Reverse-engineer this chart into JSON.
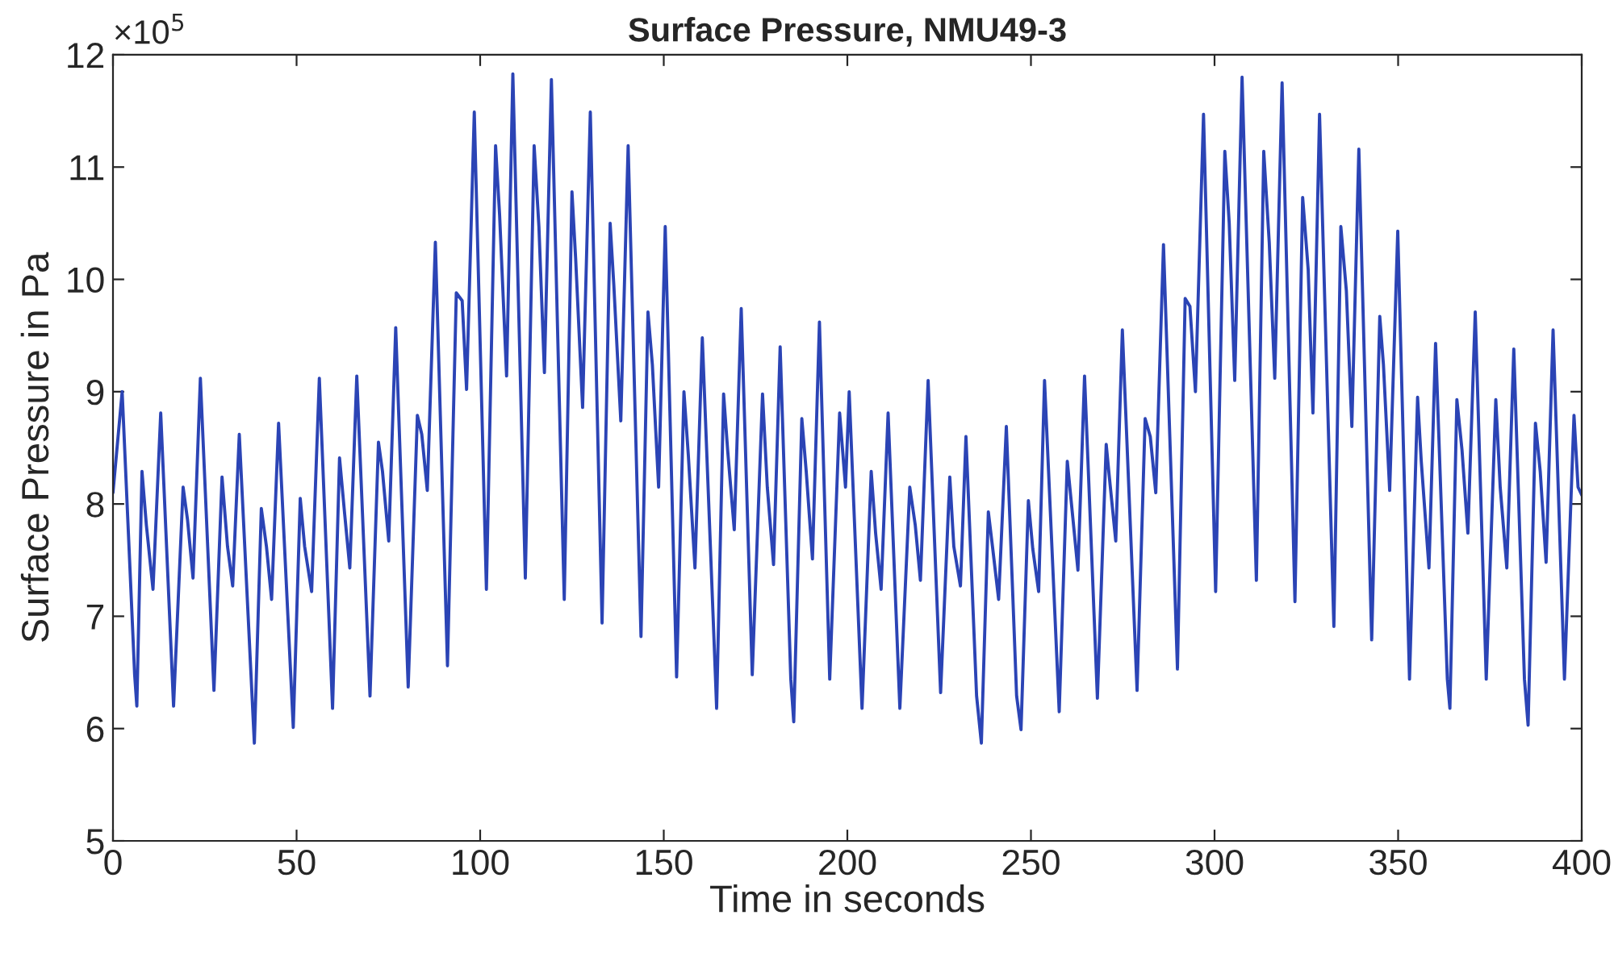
{
  "chart_data": {
    "type": "line",
    "title": "Surface Pressure, NMU49-3",
    "xlabel": "Time in seconds",
    "ylabel": "Surface Pressure in Pa",
    "annotations": [
      "×10$^{5}$"
    ],
    "xlim": [
      0,
      400
    ],
    "xticks": [
      0,
      50,
      100,
      150,
      200,
      250,
      300,
      350,
      400
    ],
    "ylim": [
      5,
      12
    ],
    "yticks": [
      5,
      6,
      7,
      8,
      9,
      10,
      11,
      12
    ],
    "grid": false,
    "legend": false,
    "marker": "none",
    "line_style": "solid",
    "series": [
      {
        "color": "#2b44b5",
        "x": [
          0,
          2.5,
          5.9,
          6.5,
          7.9,
          9.1,
          10.9,
          13.0,
          16.5,
          19.1,
          20.3,
          21.8,
          23.8,
          27.5,
          29.7,
          31.2,
          32.6,
          34.4,
          38.5,
          40.4,
          41.8,
          43.2,
          45.1,
          49.1,
          51.0,
          52.2,
          54.1,
          56.2,
          59.8,
          61.7,
          63.1,
          64.5,
          66.4,
          70.0,
          72.3,
          73.4,
          75.1,
          77.0,
          80.4,
          82.9,
          84.1,
          85.6,
          87.8,
          91.1,
          93.5,
          95.1,
          96.3,
          98.4,
          101.7,
          104.2,
          105.3,
          107.2,
          108.9,
          112.3,
          114.7,
          116.0,
          117.5,
          119.4,
          122.9,
          125.0,
          126.0,
          127.9,
          130.0,
          133.2,
          135.4,
          136.4,
          138.3,
          140.3,
          143.8,
          145.7,
          146.9,
          148.6,
          150.4,
          153.5,
          155.5,
          156.7,
          158.5,
          160.5,
          164.1,
          164.4,
          166.3,
          167.4,
          169.2,
          171.1,
          174.1,
          176.9,
          178.2,
          179.9,
          181.7,
          184.6,
          185.4,
          187.6,
          188.8,
          190.5,
          192.4,
          195.2,
          197.9,
          199.5,
          200.5,
          204.0,
          206.5,
          207.7,
          209.2,
          211.1,
          214.3,
          217.0,
          218.5,
          219.9,
          222.0,
          225.4,
          227.9,
          229.0,
          230.8,
          232.3,
          235.2,
          236.5,
          238.4,
          239.6,
          241.2,
          243.3,
          246.1,
          247.3,
          249.3,
          250.5,
          252.1,
          253.7,
          257.7,
          259.9,
          261.4,
          262.8,
          264.6,
          268.1,
          270.5,
          271.2,
          273.1,
          274.9,
          278.9,
          281.1,
          282.5,
          284.0,
          286.1,
          289.9,
          292.0,
          293.3,
          294.8,
          297.0,
          300.3,
          302.8,
          304.0,
          305.5,
          307.5,
          311.4,
          313.4,
          314.9,
          316.4,
          318.4,
          321.9,
          324.0,
          325.5,
          326.8,
          328.6,
          332.5,
          334.4,
          335.9,
          337.4,
          339.3,
          342.8,
          345.0,
          346.0,
          347.7,
          349.9,
          353.1,
          355.3,
          356.3,
          358.4,
          360.2,
          363.4,
          364.1,
          366.0,
          367.4,
          369.0,
          371.0,
          374.0,
          376.6,
          377.8,
          379.6,
          381.5,
          384.4,
          385.4,
          387.4,
          388.7,
          390.3,
          392.2,
          395.3,
          397.9,
          399.0,
          400
        ],
        "values": [
          8.1,
          9.0,
          6.48,
          6.2,
          8.29,
          7.81,
          7.24,
          8.81,
          6.2,
          8.15,
          7.86,
          7.34,
          9.12,
          6.34,
          8.24,
          7.62,
          7.27,
          8.62,
          5.87,
          7.96,
          7.62,
          7.15,
          8.72,
          6.01,
          8.05,
          7.62,
          7.22,
          9.12,
          6.18,
          8.41,
          7.91,
          7.43,
          9.14,
          6.29,
          8.55,
          8.29,
          7.67,
          9.57,
          6.37,
          8.79,
          8.62,
          8.12,
          10.33,
          6.56,
          9.88,
          9.81,
          9.02,
          11.49,
          7.24,
          11.19,
          10.57,
          9.14,
          11.83,
          7.34,
          11.19,
          10.47,
          9.17,
          11.78,
          7.15,
          10.78,
          10.19,
          8.86,
          11.49,
          6.94,
          10.5,
          9.95,
          8.74,
          11.19,
          6.82,
          9.71,
          9.24,
          8.15,
          10.47,
          6.46,
          9.0,
          8.43,
          7.43,
          9.48,
          6.44,
          6.18,
          8.98,
          8.48,
          7.77,
          9.74,
          6.48,
          8.98,
          8.15,
          7.46,
          9.4,
          6.44,
          6.06,
          8.76,
          8.29,
          7.51,
          9.62,
          6.44,
          8.81,
          8.15,
          9.0,
          6.18,
          8.29,
          7.74,
          7.24,
          8.81,
          6.18,
          8.15,
          7.81,
          7.32,
          9.1,
          6.32,
          8.24,
          7.62,
          7.27,
          8.6,
          6.29,
          5.87,
          7.93,
          7.6,
          7.15,
          8.69,
          6.29,
          5.99,
          8.03,
          7.6,
          7.22,
          9.1,
          6.15,
          8.38,
          7.88,
          7.41,
          9.14,
          6.27,
          8.53,
          8.29,
          7.67,
          9.55,
          6.34,
          8.76,
          8.6,
          8.1,
          10.31,
          6.53,
          9.83,
          9.76,
          9.0,
          11.47,
          7.22,
          11.14,
          10.5,
          9.1,
          11.8,
          7.32,
          11.14,
          10.33,
          9.12,
          11.75,
          7.13,
          10.73,
          10.09,
          8.81,
          11.47,
          6.91,
          10.47,
          9.9,
          8.69,
          11.16,
          6.79,
          9.67,
          9.24,
          8.12,
          10.43,
          6.44,
          8.95,
          8.38,
          7.43,
          9.43,
          6.44,
          6.18,
          8.93,
          8.48,
          7.74,
          9.71,
          6.44,
          8.93,
          8.15,
          7.43,
          9.38,
          6.44,
          6.03,
          8.72,
          8.29,
          7.48,
          9.55,
          6.44,
          8.79,
          8.15,
          8.08
        ]
      }
    ]
  }
}
